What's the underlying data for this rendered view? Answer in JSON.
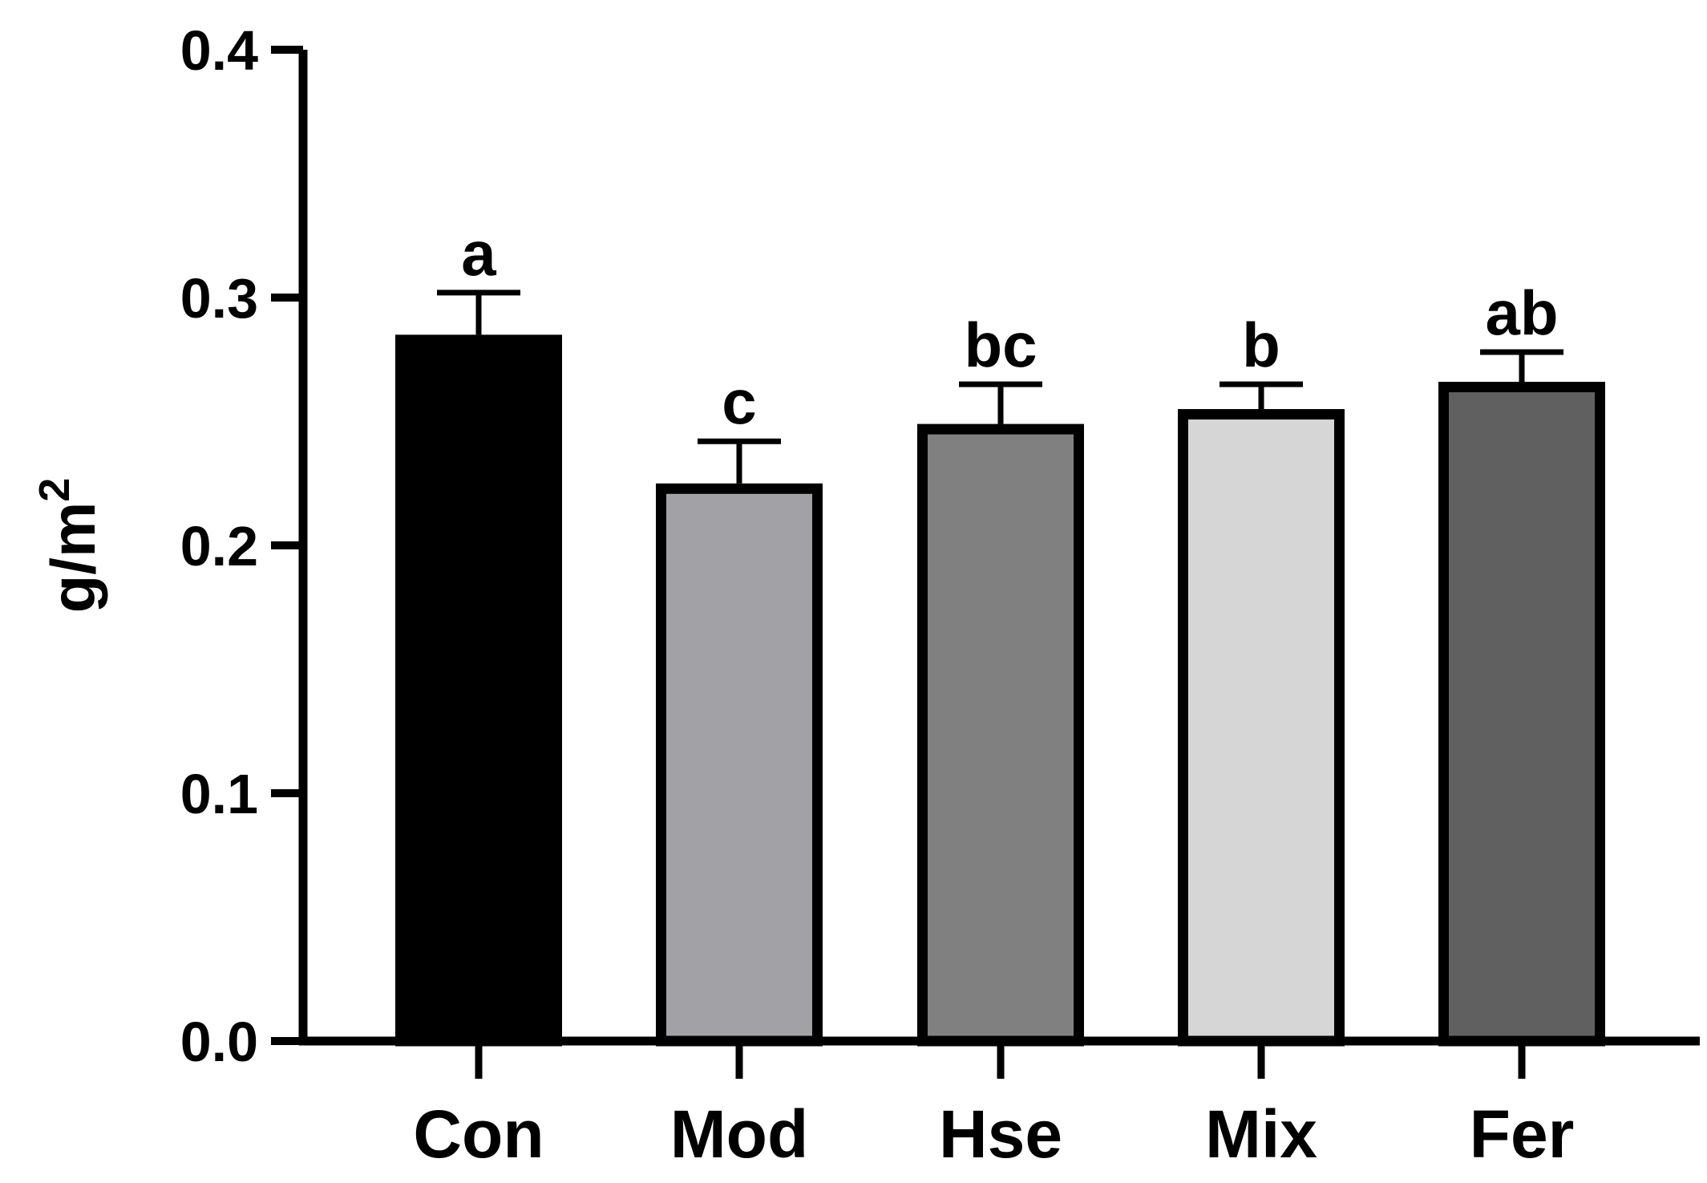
{
  "chart_data": {
    "type": "bar",
    "title": "",
    "xlabel": "",
    "ylabel": "g/m",
    "ylabel_superscript": "2",
    "ylim": [
      0,
      0.4
    ],
    "yticks": [
      0.0,
      0.1,
      0.2,
      0.3,
      0.4
    ],
    "ytick_labels": [
      "0.0",
      "0.1",
      "0.2",
      "0.3",
      "0.4"
    ],
    "categories": [
      "Con",
      "Mod",
      "Hse",
      "Mix",
      "Fer"
    ],
    "values": [
      0.285,
      0.225,
      0.249,
      0.255,
      0.266
    ],
    "errors": [
      0.017,
      0.017,
      0.016,
      0.01,
      0.012
    ],
    "significance_letters": [
      "a",
      "c",
      "bc",
      "b",
      "ab"
    ],
    "bar_colors": [
      "#000000",
      "#a2a1a5",
      "#808080",
      "#d6d6d6",
      "#606060"
    ],
    "edge_color": "#000000",
    "grid": false,
    "legend": "none"
  }
}
